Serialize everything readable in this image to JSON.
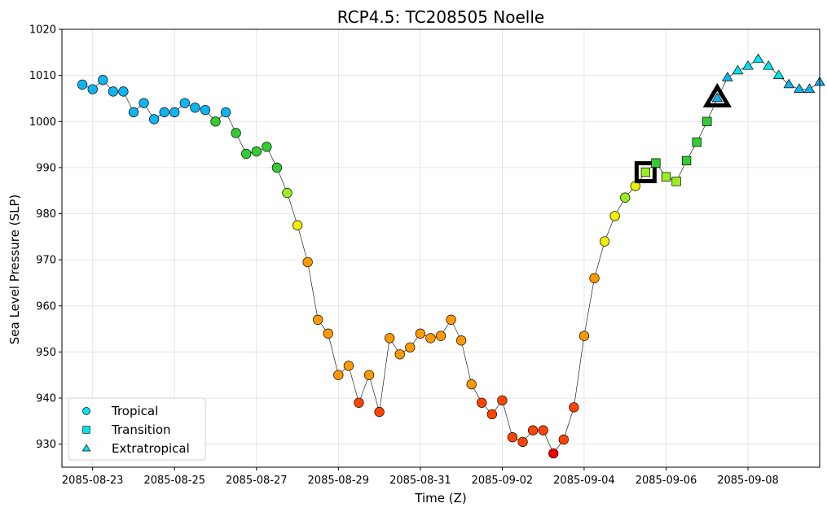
{
  "chart_data": {
    "type": "scatter",
    "title": "RCP4.5: TC208505 Noelle",
    "xlabel": "Time (Z)",
    "ylabel": "Sea Level Pressure (SLP)",
    "xlim": [
      "2085-08-22T06:00",
      "2085-09-09T18:00"
    ],
    "ylim": [
      925,
      1020
    ],
    "yticks": [
      930,
      940,
      950,
      960,
      970,
      980,
      990,
      1000,
      1010,
      1020
    ],
    "xticks": [
      "2085-08-23",
      "2085-08-25",
      "2085-08-27",
      "2085-08-29",
      "2085-08-31",
      "2085-09-02",
      "2085-09-04",
      "2085-09-06",
      "2085-09-08"
    ],
    "grid": true,
    "legend": {
      "placement": "lower-left",
      "entries": [
        {
          "label": "Tropical",
          "marker": "circle",
          "color": "#00e5ee"
        },
        {
          "label": "Transition",
          "marker": "square",
          "color": "#00e5ee"
        },
        {
          "label": "Extratropical",
          "marker": "triangle",
          "color": "#00e5ee"
        }
      ]
    },
    "colors": {
      "line": "#000000",
      "blue": "#10b4f0",
      "green": "#33cc33",
      "ltgreen": "#99ee22",
      "yellow": "#eeee00",
      "orange": "#ff9900",
      "redorange": "#ff4400",
      "red": "#ee0000",
      "cyan": "#00e5ee"
    },
    "series": [
      {
        "x": "2085-08-22T18:00",
        "y": 1008,
        "phase": "tropical",
        "color": "blue"
      },
      {
        "x": "2085-08-23T00:00",
        "y": 1007,
        "phase": "tropical",
        "color": "blue"
      },
      {
        "x": "2085-08-23T06:00",
        "y": 1009,
        "phase": "tropical",
        "color": "blue"
      },
      {
        "x": "2085-08-23T12:00",
        "y": 1006.5,
        "phase": "tropical",
        "color": "blue"
      },
      {
        "x": "2085-08-23T18:00",
        "y": 1006.5,
        "phase": "tropical",
        "color": "blue"
      },
      {
        "x": "2085-08-24T00:00",
        "y": 1002,
        "phase": "tropical",
        "color": "blue"
      },
      {
        "x": "2085-08-24T06:00",
        "y": 1004,
        "phase": "tropical",
        "color": "blue"
      },
      {
        "x": "2085-08-24T12:00",
        "y": 1000.5,
        "phase": "tropical",
        "color": "blue"
      },
      {
        "x": "2085-08-24T18:00",
        "y": 1002,
        "phase": "tropical",
        "color": "blue"
      },
      {
        "x": "2085-08-25T00:00",
        "y": 1002,
        "phase": "tropical",
        "color": "blue"
      },
      {
        "x": "2085-08-25T06:00",
        "y": 1004,
        "phase": "tropical",
        "color": "blue"
      },
      {
        "x": "2085-08-25T12:00",
        "y": 1003,
        "phase": "tropical",
        "color": "blue"
      },
      {
        "x": "2085-08-25T18:00",
        "y": 1002.5,
        "phase": "tropical",
        "color": "blue"
      },
      {
        "x": "2085-08-26T00:00",
        "y": 1000,
        "phase": "tropical",
        "color": "green"
      },
      {
        "x": "2085-08-26T06:00",
        "y": 1002,
        "phase": "tropical",
        "color": "blue"
      },
      {
        "x": "2085-08-26T12:00",
        "y": 997.5,
        "phase": "tropical",
        "color": "green"
      },
      {
        "x": "2085-08-26T18:00",
        "y": 993,
        "phase": "tropical",
        "color": "green"
      },
      {
        "x": "2085-08-27T00:00",
        "y": 993.5,
        "phase": "tropical",
        "color": "green"
      },
      {
        "x": "2085-08-27T06:00",
        "y": 994.5,
        "phase": "tropical",
        "color": "green"
      },
      {
        "x": "2085-08-27T12:00",
        "y": 990,
        "phase": "tropical",
        "color": "green"
      },
      {
        "x": "2085-08-27T18:00",
        "y": 984.5,
        "phase": "tropical",
        "color": "ltgreen"
      },
      {
        "x": "2085-08-28T00:00",
        "y": 977.5,
        "phase": "tropical",
        "color": "yellow"
      },
      {
        "x": "2085-08-28T06:00",
        "y": 969.5,
        "phase": "tropical",
        "color": "orange"
      },
      {
        "x": "2085-08-28T12:00",
        "y": 957,
        "phase": "tropical",
        "color": "orange"
      },
      {
        "x": "2085-08-28T18:00",
        "y": 954,
        "phase": "tropical",
        "color": "orange"
      },
      {
        "x": "2085-08-29T00:00",
        "y": 945,
        "phase": "tropical",
        "color": "orange"
      },
      {
        "x": "2085-08-29T06:00",
        "y": 947,
        "phase": "tropical",
        "color": "orange"
      },
      {
        "x": "2085-08-29T12:00",
        "y": 939,
        "phase": "tropical",
        "color": "redorange"
      },
      {
        "x": "2085-08-29T18:00",
        "y": 945,
        "phase": "tropical",
        "color": "orange"
      },
      {
        "x": "2085-08-30T00:00",
        "y": 937,
        "phase": "tropical",
        "color": "redorange"
      },
      {
        "x": "2085-08-30T06:00",
        "y": 953,
        "phase": "tropical",
        "color": "orange"
      },
      {
        "x": "2085-08-30T12:00",
        "y": 949.5,
        "phase": "tropical",
        "color": "orange"
      },
      {
        "x": "2085-08-30T18:00",
        "y": 951,
        "phase": "tropical",
        "color": "orange"
      },
      {
        "x": "2085-08-31T00:00",
        "y": 954,
        "phase": "tropical",
        "color": "orange"
      },
      {
        "x": "2085-08-31T06:00",
        "y": 953,
        "phase": "tropical",
        "color": "orange"
      },
      {
        "x": "2085-08-31T12:00",
        "y": 953.5,
        "phase": "tropical",
        "color": "orange"
      },
      {
        "x": "2085-08-31T18:00",
        "y": 957,
        "phase": "tropical",
        "color": "orange"
      },
      {
        "x": "2085-09-01T00:00",
        "y": 952.5,
        "phase": "tropical",
        "color": "orange"
      },
      {
        "x": "2085-09-01T06:00",
        "y": 943,
        "phase": "tropical",
        "color": "orange"
      },
      {
        "x": "2085-09-01T12:00",
        "y": 939,
        "phase": "tropical",
        "color": "redorange"
      },
      {
        "x": "2085-09-01T18:00",
        "y": 936.5,
        "phase": "tropical",
        "color": "redorange"
      },
      {
        "x": "2085-09-02T00:00",
        "y": 939.5,
        "phase": "tropical",
        "color": "redorange"
      },
      {
        "x": "2085-09-02T06:00",
        "y": 931.5,
        "phase": "tropical",
        "color": "redorange"
      },
      {
        "x": "2085-09-02T12:00",
        "y": 930.5,
        "phase": "tropical",
        "color": "redorange"
      },
      {
        "x": "2085-09-02T18:00",
        "y": 933,
        "phase": "tropical",
        "color": "redorange"
      },
      {
        "x": "2085-09-03T00:00",
        "y": 933,
        "phase": "tropical",
        "color": "redorange"
      },
      {
        "x": "2085-09-03T06:00",
        "y": 928,
        "phase": "tropical",
        "color": "red"
      },
      {
        "x": "2085-09-03T12:00",
        "y": 931,
        "phase": "tropical",
        "color": "redorange"
      },
      {
        "x": "2085-09-03T18:00",
        "y": 938,
        "phase": "tropical",
        "color": "redorange"
      },
      {
        "x": "2085-09-04T00:00",
        "y": 953.5,
        "phase": "tropical",
        "color": "orange"
      },
      {
        "x": "2085-09-04T06:00",
        "y": 966,
        "phase": "tropical",
        "color": "orange"
      },
      {
        "x": "2085-09-04T12:00",
        "y": 974,
        "phase": "tropical",
        "color": "yellow"
      },
      {
        "x": "2085-09-04T18:00",
        "y": 979.5,
        "phase": "tropical",
        "color": "yellow"
      },
      {
        "x": "2085-09-05T00:00",
        "y": 983.5,
        "phase": "tropical",
        "color": "ltgreen"
      },
      {
        "x": "2085-09-05T06:00",
        "y": 986,
        "phase": "tropical",
        "color": "yellow"
      },
      {
        "x": "2085-09-05T12:00",
        "y": 989,
        "phase": "transition",
        "color": "ltgreen",
        "highlight": true
      },
      {
        "x": "2085-09-05T18:00",
        "y": 991,
        "phase": "transition",
        "color": "green"
      },
      {
        "x": "2085-09-06T00:00",
        "y": 988,
        "phase": "transition",
        "color": "ltgreen"
      },
      {
        "x": "2085-09-06T06:00",
        "y": 987,
        "phase": "transition",
        "color": "ltgreen"
      },
      {
        "x": "2085-09-06T12:00",
        "y": 991.5,
        "phase": "transition",
        "color": "green"
      },
      {
        "x": "2085-09-06T18:00",
        "y": 995.5,
        "phase": "transition",
        "color": "green"
      },
      {
        "x": "2085-09-07T00:00",
        "y": 1000,
        "phase": "transition",
        "color": "green"
      },
      {
        "x": "2085-09-07T06:00",
        "y": 1005,
        "phase": "extratropical",
        "color": "blue",
        "highlight": true
      },
      {
        "x": "2085-09-07T12:00",
        "y": 1009.5,
        "phase": "extratropical",
        "color": "blue"
      },
      {
        "x": "2085-09-07T18:00",
        "y": 1011,
        "phase": "extratropical",
        "color": "cyan"
      },
      {
        "x": "2085-09-08T00:00",
        "y": 1012,
        "phase": "extratropical",
        "color": "cyan"
      },
      {
        "x": "2085-09-08T06:00",
        "y": 1013.5,
        "phase": "extratropical",
        "color": "cyan"
      },
      {
        "x": "2085-09-08T12:00",
        "y": 1012,
        "phase": "extratropical",
        "color": "cyan"
      },
      {
        "x": "2085-09-08T18:00",
        "y": 1010,
        "phase": "extratropical",
        "color": "cyan"
      },
      {
        "x": "2085-09-09T00:00",
        "y": 1008,
        "phase": "extratropical",
        "color": "blue"
      },
      {
        "x": "2085-09-09T06:00",
        "y": 1007,
        "phase": "extratropical",
        "color": "blue"
      },
      {
        "x": "2085-09-09T12:00",
        "y": 1007,
        "phase": "extratropical",
        "color": "blue"
      },
      {
        "x": "2085-09-09T18:00",
        "y": 1008.5,
        "phase": "extratropical",
        "color": "blue"
      }
    ]
  }
}
